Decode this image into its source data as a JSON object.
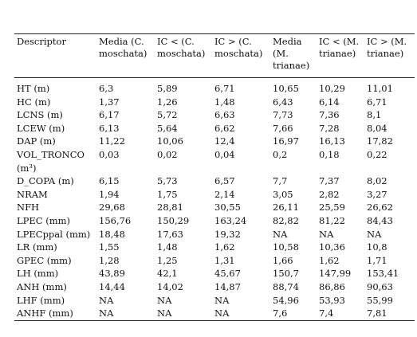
{
  "table": {
    "columns": [
      "Descriptor",
      "Media (C. moschata)",
      "IC < (C. moschata)",
      "IC > (C. moschata)",
      "Media (M. trianae)",
      "IC < (M. trianae)",
      "IC > (M. trianae)"
    ],
    "rows": [
      [
        "HT (m)",
        "6,3",
        "5,89",
        "6,71",
        "10,65",
        "10,29",
        "11,01"
      ],
      [
        "HC (m)",
        "1,37",
        "1,26",
        "1,48",
        "6,43",
        "6,14",
        "6,71"
      ],
      [
        "LCNS (m)",
        "6,17",
        "5,72",
        "6,63",
        "7,73",
        "7,36",
        "8,1"
      ],
      [
        "LCEW (m)",
        "6,13",
        "5,64",
        "6,62",
        "7,66",
        "7,28",
        "8,04"
      ],
      [
        "DAP (m)",
        "11,22",
        "10,06",
        "12,4",
        "16,97",
        "16,13",
        "17,82"
      ],
      [
        "VOL_TRONCO (m³)",
        "0,03",
        "0,02",
        "0,04",
        "0,2",
        "0,18",
        "0,22"
      ],
      [
        "D_COPA (m)",
        "6,15",
        "5,73",
        "6,57",
        "7,7",
        "7,37",
        "8,02"
      ],
      [
        "NRAM",
        "1,94",
        "1,75",
        "2,14",
        "3,05",
        "2,82",
        "3,27"
      ],
      [
        "NFH",
        "29,68",
        "28,81",
        "30,55",
        "26,11",
        "25,59",
        "26,62"
      ],
      [
        "LPEC (mm)",
        "156,76",
        "150,29",
        "163,24",
        "82,82",
        "81,22",
        "84,43"
      ],
      [
        "LPECppal (mm)",
        "18,48",
        "17,63",
        "19,32",
        "NA",
        "NA",
        "NA"
      ],
      [
        "LR (mm)",
        "1,55",
        "1,48",
        "1,62",
        "10,58",
        "10,36",
        "10,8"
      ],
      [
        "GPEC (mm)",
        "1,28",
        "1,25",
        "1,31",
        "1,66",
        "1,62",
        "1,71"
      ],
      [
        "LH (mm)",
        "43,89",
        "42,1",
        "45,67",
        "150,7",
        "147,99",
        "153,41"
      ],
      [
        "ANH (mm)",
        "14,44",
        "14,02",
        "14,87",
        "88,74",
        "86,86",
        "90,63"
      ],
      [
        "LHF (mm)",
        "NA",
        "NA",
        "NA",
        "54,96",
        "53,93",
        "55,99"
      ],
      [
        "ANHF (mm)",
        "NA",
        "NA",
        "NA",
        "7,6",
        "7,4",
        "7,81"
      ]
    ]
  }
}
